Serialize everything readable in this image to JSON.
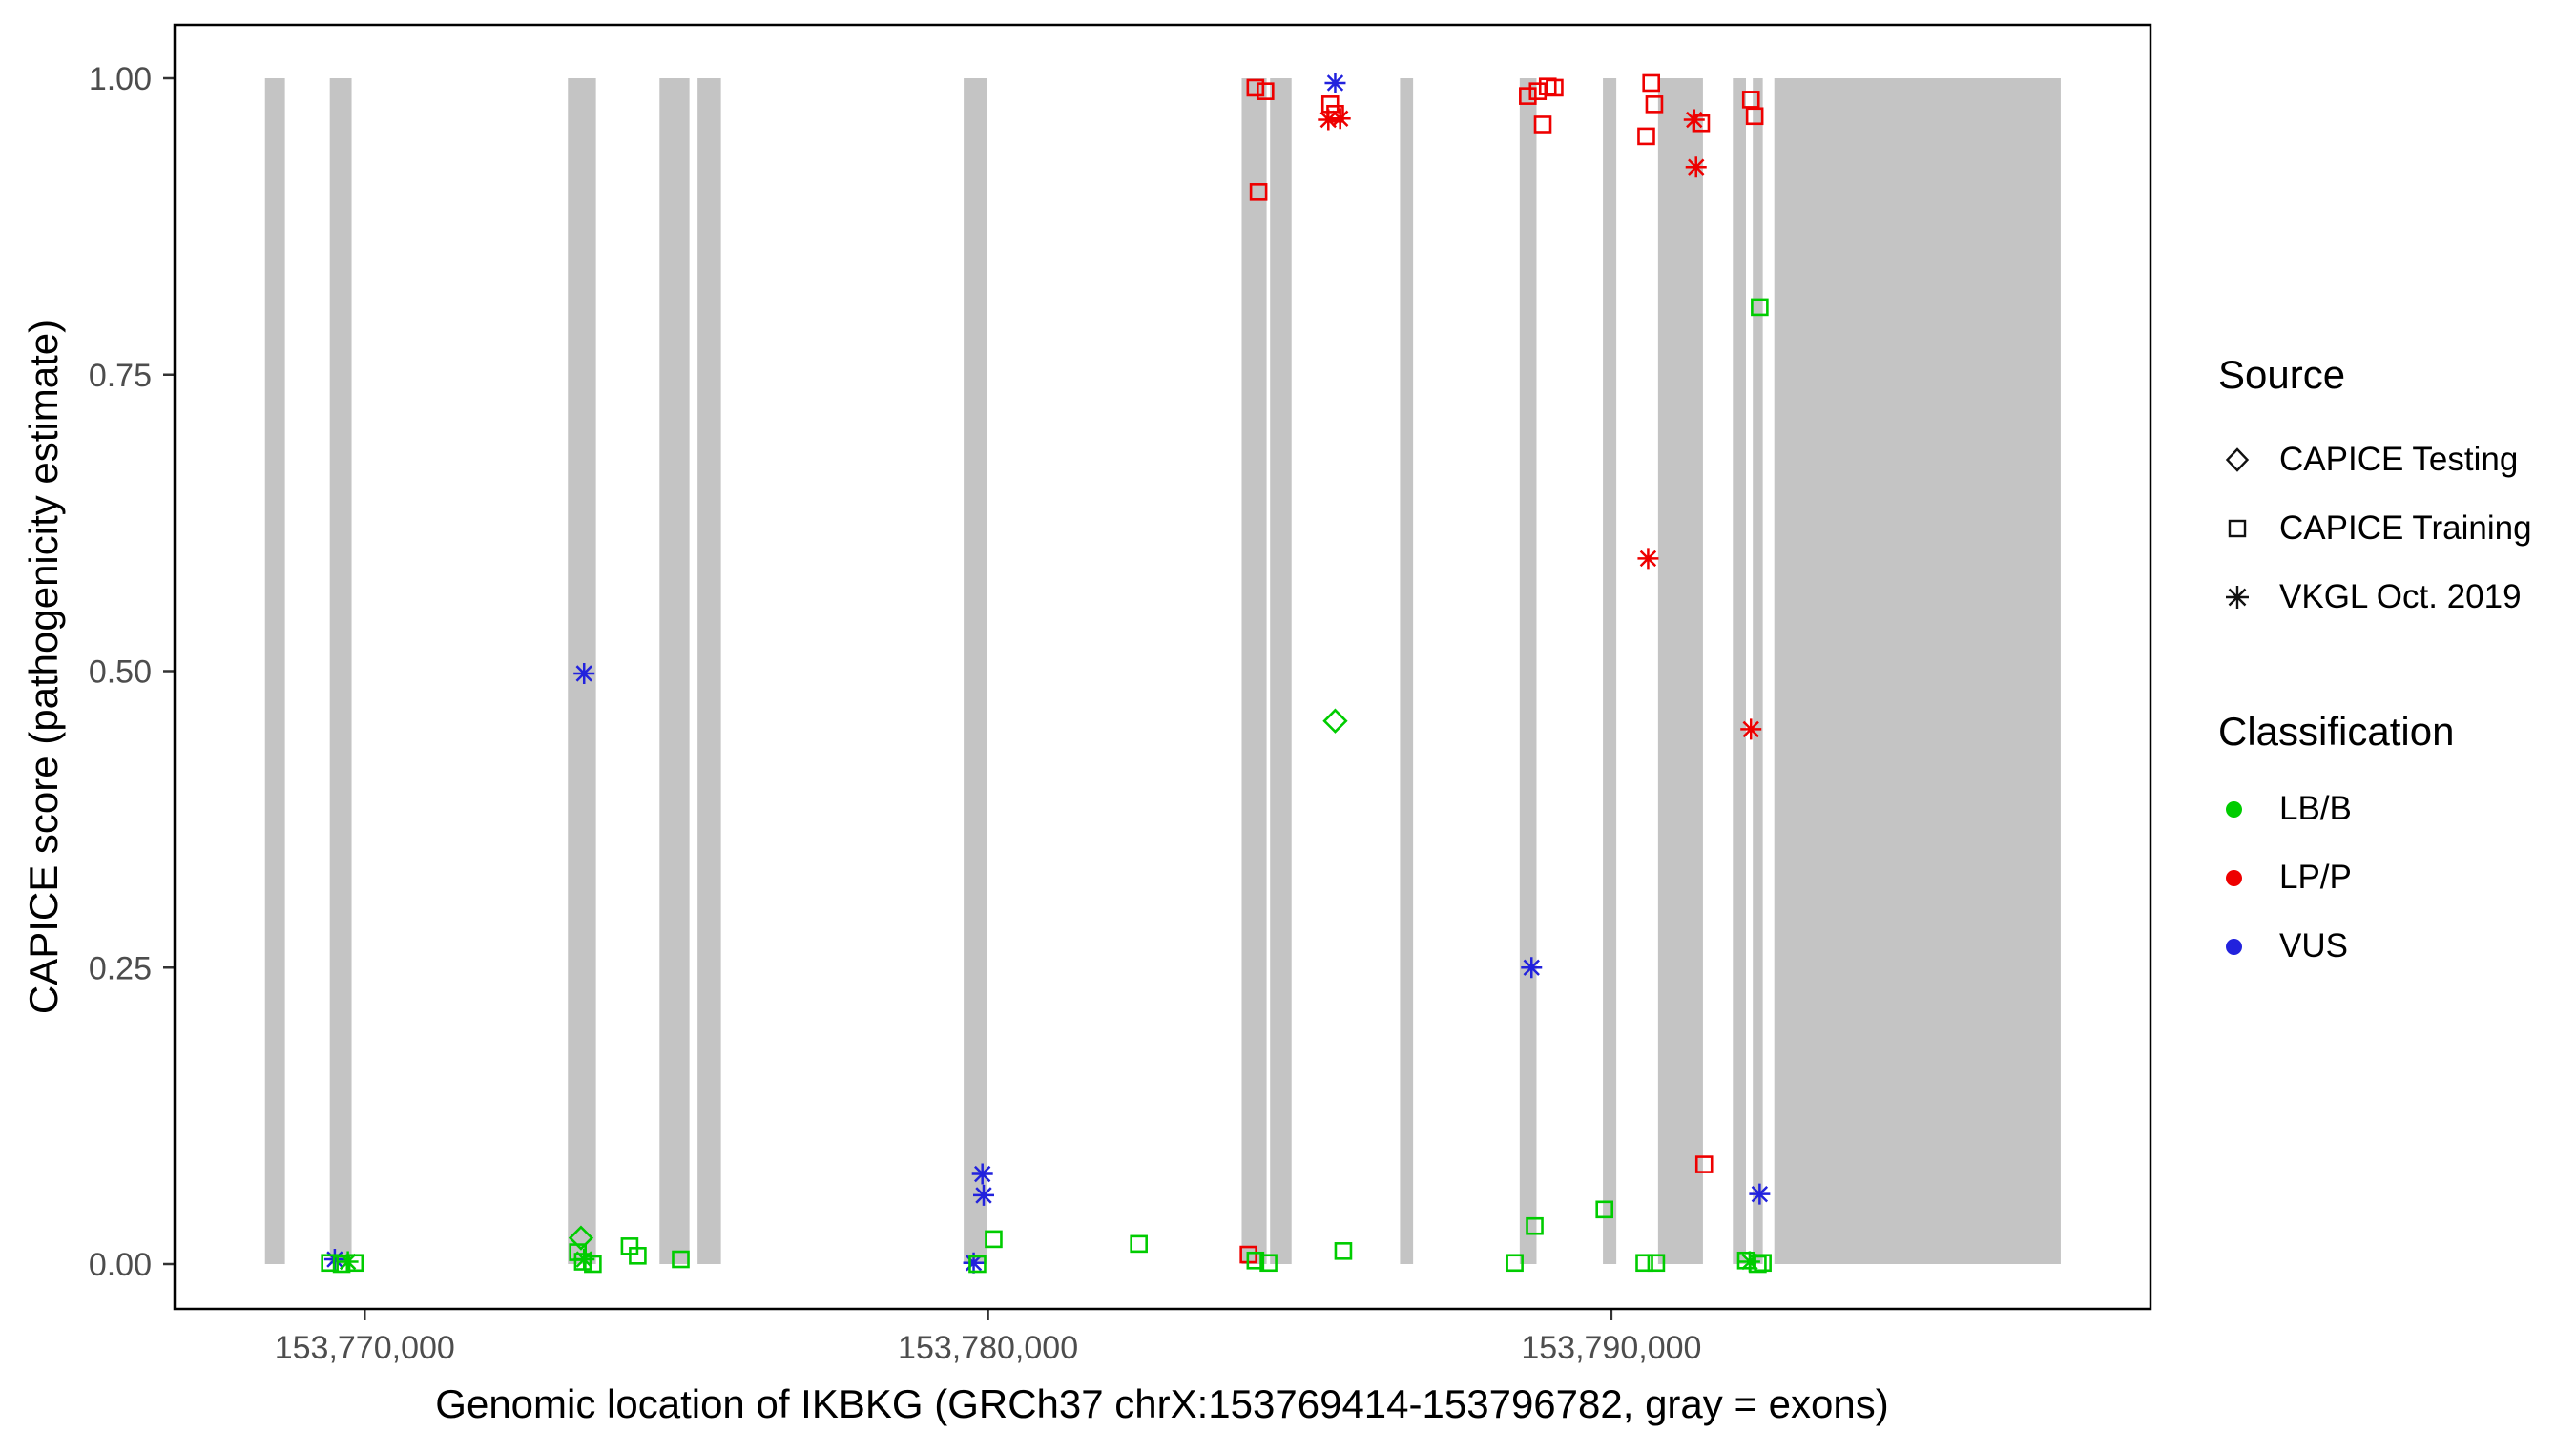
{
  "legend": {
    "source_title": "Source",
    "source_items": [
      {
        "label": "CAPICE Testing",
        "shape": "diamond"
      },
      {
        "label": "CAPICE Training",
        "shape": "square"
      },
      {
        "label": "VKGL Oct. 2019",
        "shape": "asterisk"
      }
    ],
    "classification_title": "Classification",
    "classification_items": [
      {
        "label": "LB/B",
        "color": "#00CC00"
      },
      {
        "label": "LP/P",
        "color": "#EE0000"
      },
      {
        "label": "VUS",
        "color": "#2222DD"
      }
    ]
  },
  "chart_data": {
    "type": "scatter",
    "title": "",
    "xlabel": "Genomic location of IKBKG (GRCh37 chrX:153769414-153796782, gray = exons)",
    "ylabel": "CAPICE score (pathogenicity estimate)",
    "xlim": [
      153766950,
      153798650
    ],
    "ylim": [
      0,
      1
    ],
    "grid": false,
    "legend_position": "right",
    "x_ticks": [
      {
        "value": 153770000,
        "label": "153,770,000"
      },
      {
        "value": 153780000,
        "label": "153,780,000"
      },
      {
        "value": 153790000,
        "label": "153,790,000"
      }
    ],
    "y_ticks": [
      {
        "value": 0.0,
        "label": "0.00"
      },
      {
        "value": 0.25,
        "label": "0.25"
      },
      {
        "value": 0.5,
        "label": "0.50"
      },
      {
        "value": 0.75,
        "label": "0.75"
      },
      {
        "value": 1.0,
        "label": "1.00"
      }
    ],
    "exon_color": "#C4C4C4",
    "exons": [
      [
        153768400,
        153768720
      ],
      [
        153769440,
        153769790
      ],
      [
        153773260,
        153773710
      ],
      [
        153774730,
        153775210
      ],
      [
        153775340,
        153775715
      ],
      [
        153779610,
        153779990
      ],
      [
        153784070,
        153784470
      ],
      [
        153784525,
        153784870
      ],
      [
        153786610,
        153786820
      ],
      [
        153788530,
        153788800
      ],
      [
        153789865,
        153790080
      ],
      [
        153790750,
        153791470
      ],
      [
        153791950,
        153792160
      ],
      [
        153792270,
        153792430
      ],
      [
        153792615,
        153797210
      ]
    ],
    "colors": {
      "LB/B": "#00CC00",
      "LP/P": "#EE0000",
      "VUS": "#2222DD"
    },
    "shapes": {
      "CAPICE Testing": "diamond",
      "CAPICE Training": "square",
      "VKGL Oct. 2019": "asterisk"
    },
    "points": [
      {
        "x": 153769520,
        "y": 0.004,
        "classification": "VUS",
        "source": "VKGL Oct. 2019"
      },
      {
        "x": 153769730,
        "y": 0.002,
        "classification": "LB/B",
        "source": "VKGL Oct. 2019"
      },
      {
        "x": 153769440,
        "y": 0.001,
        "classification": "LB/B",
        "source": "CAPICE Training"
      },
      {
        "x": 153769630,
        "y": 0.0,
        "classification": "LB/B",
        "source": "CAPICE Training"
      },
      {
        "x": 153769840,
        "y": 0.001,
        "classification": "LB/B",
        "source": "CAPICE Training"
      },
      {
        "x": 153773470,
        "y": 0.022,
        "classification": "LB/B",
        "source": "CAPICE Testing"
      },
      {
        "x": 153773420,
        "y": 0.01,
        "classification": "LB/B",
        "source": "CAPICE Training"
      },
      {
        "x": 153773500,
        "y": 0.002,
        "classification": "LB/B",
        "source": "CAPICE Training"
      },
      {
        "x": 153773660,
        "y": 0.0,
        "classification": "LB/B",
        "source": "CAPICE Training"
      },
      {
        "x": 153773520,
        "y": 0.004,
        "classification": "LB/B",
        "source": "VKGL Oct. 2019"
      },
      {
        "x": 153773520,
        "y": 0.498,
        "classification": "VUS",
        "source": "VKGL Oct. 2019"
      },
      {
        "x": 153774250,
        "y": 0.015,
        "classification": "LB/B",
        "source": "CAPICE Training"
      },
      {
        "x": 153774380,
        "y": 0.007,
        "classification": "LB/B",
        "source": "CAPICE Training"
      },
      {
        "x": 153775070,
        "y": 0.004,
        "classification": "LB/B",
        "source": "CAPICE Training"
      },
      {
        "x": 153779910,
        "y": 0.076,
        "classification": "VUS",
        "source": "VKGL Oct. 2019"
      },
      {
        "x": 153779930,
        "y": 0.058,
        "classification": "VUS",
        "source": "VKGL Oct. 2019"
      },
      {
        "x": 153780090,
        "y": 0.021,
        "classification": "LB/B",
        "source": "CAPICE Training"
      },
      {
        "x": 153779770,
        "y": 0.001,
        "classification": "VUS",
        "source": "VKGL Oct. 2019"
      },
      {
        "x": 153779830,
        "y": 0.0,
        "classification": "LB/B",
        "source": "CAPICE Training"
      },
      {
        "x": 153782420,
        "y": 0.017,
        "classification": "LB/B",
        "source": "CAPICE Training"
      },
      {
        "x": 153784290,
        "y": 0.992,
        "classification": "LP/P",
        "source": "CAPICE Training"
      },
      {
        "x": 153784450,
        "y": 0.989,
        "classification": "LP/P",
        "source": "CAPICE Training"
      },
      {
        "x": 153784340,
        "y": 0.904,
        "classification": "LP/P",
        "source": "CAPICE Training"
      },
      {
        "x": 153784180,
        "y": 0.008,
        "classification": "LP/P",
        "source": "CAPICE Training"
      },
      {
        "x": 153784290,
        "y": 0.003,
        "classification": "LB/B",
        "source": "CAPICE Training"
      },
      {
        "x": 153784500,
        "y": 0.001,
        "classification": "LB/B",
        "source": "CAPICE Training"
      },
      {
        "x": 153785570,
        "y": 0.996,
        "classification": "VUS",
        "source": "VKGL Oct. 2019"
      },
      {
        "x": 153785490,
        "y": 0.978,
        "classification": "LP/P",
        "source": "CAPICE Training"
      },
      {
        "x": 153785570,
        "y": 0.97,
        "classification": "LP/P",
        "source": "CAPICE Training"
      },
      {
        "x": 153785460,
        "y": 0.965,
        "classification": "LP/P",
        "source": "VKGL Oct. 2019"
      },
      {
        "x": 153785650,
        "y": 0.966,
        "classification": "LP/P",
        "source": "VKGL Oct. 2019"
      },
      {
        "x": 153785570,
        "y": 0.458,
        "classification": "LB/B",
        "source": "CAPICE Testing"
      },
      {
        "x": 153785700,
        "y": 0.011,
        "classification": "LB/B",
        "source": "CAPICE Training"
      },
      {
        "x": 153788660,
        "y": 0.985,
        "classification": "LP/P",
        "source": "CAPICE Training"
      },
      {
        "x": 153788820,
        "y": 0.989,
        "classification": "LP/P",
        "source": "CAPICE Training"
      },
      {
        "x": 153788980,
        "y": 0.993,
        "classification": "LP/P",
        "source": "CAPICE Training"
      },
      {
        "x": 153789090,
        "y": 0.992,
        "classification": "LP/P",
        "source": "CAPICE Training"
      },
      {
        "x": 153788900,
        "y": 0.961,
        "classification": "LP/P",
        "source": "CAPICE Training"
      },
      {
        "x": 153788720,
        "y": 0.25,
        "classification": "VUS",
        "source": "VKGL Oct. 2019"
      },
      {
        "x": 153788770,
        "y": 0.032,
        "classification": "LB/B",
        "source": "CAPICE Training"
      },
      {
        "x": 153788450,
        "y": 0.001,
        "classification": "LB/B",
        "source": "CAPICE Training"
      },
      {
        "x": 153789890,
        "y": 0.046,
        "classification": "LB/B",
        "source": "CAPICE Training"
      },
      {
        "x": 153790640,
        "y": 0.996,
        "classification": "LP/P",
        "source": "CAPICE Training"
      },
      {
        "x": 153790690,
        "y": 0.978,
        "classification": "LP/P",
        "source": "CAPICE Training"
      },
      {
        "x": 153790560,
        "y": 0.951,
        "classification": "LP/P",
        "source": "CAPICE Training"
      },
      {
        "x": 153790590,
        "y": 0.595,
        "classification": "LP/P",
        "source": "VKGL Oct. 2019"
      },
      {
        "x": 153790530,
        "y": 0.001,
        "classification": "LB/B",
        "source": "CAPICE Training"
      },
      {
        "x": 153790720,
        "y": 0.001,
        "classification": "LB/B",
        "source": "CAPICE Training"
      },
      {
        "x": 153791330,
        "y": 0.965,
        "classification": "LP/P",
        "source": "VKGL Oct. 2019"
      },
      {
        "x": 153791440,
        "y": 0.962,
        "classification": "LP/P",
        "source": "CAPICE Training"
      },
      {
        "x": 153791360,
        "y": 0.925,
        "classification": "LP/P",
        "source": "VKGL Oct. 2019"
      },
      {
        "x": 153791490,
        "y": 0.084,
        "classification": "LP/P",
        "source": "CAPICE Training"
      },
      {
        "x": 153792240,
        "y": 0.982,
        "classification": "LP/P",
        "source": "CAPICE Training"
      },
      {
        "x": 153792300,
        "y": 0.968,
        "classification": "LP/P",
        "source": "CAPICE Training"
      },
      {
        "x": 153792240,
        "y": 0.451,
        "classification": "LP/P",
        "source": "VKGL Oct. 2019"
      },
      {
        "x": 153792380,
        "y": 0.807,
        "classification": "LB/B",
        "source": "CAPICE Training"
      },
      {
        "x": 153792380,
        "y": 0.059,
        "classification": "VUS",
        "source": "VKGL Oct. 2019"
      },
      {
        "x": 153792220,
        "y": 0.002,
        "classification": "LB/B",
        "source": "VKGL Oct. 2019"
      },
      {
        "x": 153792160,
        "y": 0.003,
        "classification": "LB/B",
        "source": "CAPICE Training"
      },
      {
        "x": 153792350,
        "y": 0.0,
        "classification": "LB/B",
        "source": "CAPICE Training"
      },
      {
        "x": 153792430,
        "y": 0.001,
        "classification": "LB/B",
        "source": "CAPICE Training"
      }
    ]
  }
}
